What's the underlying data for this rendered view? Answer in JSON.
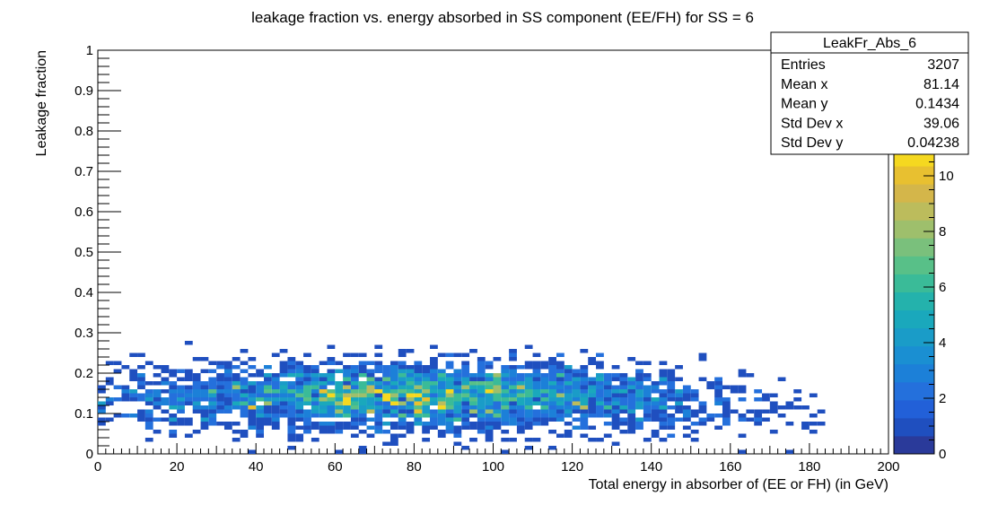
{
  "chart_data": {
    "type": "heatmap",
    "title": "leakage fraction vs. energy absorbed in SS component (EE/FH) for SS = 6",
    "xlabel": "Total energy in absorber of (EE or FH) (in GeV)",
    "ylabel": "Leakage fraction",
    "xlim": [
      0,
      200
    ],
    "ylim": [
      0,
      1
    ],
    "x_ticks": [
      "0",
      "20",
      "40",
      "60",
      "80",
      "100",
      "120",
      "140",
      "160",
      "180",
      "200"
    ],
    "y_ticks": [
      "0",
      "0.1",
      "0.2",
      "0.3",
      "0.4",
      "0.5",
      "0.6",
      "0.7",
      "0.8",
      "0.9",
      "1"
    ],
    "bins": {
      "x_bins": 100,
      "x_range": [
        0,
        200
      ],
      "y_bins": 100,
      "y_range": [
        0,
        1
      ]
    },
    "colorbar": {
      "range": [
        0,
        11
      ],
      "ticks": [
        "0",
        "2",
        "4",
        "6",
        "8",
        "10"
      ],
      "palette": [
        "#2a3a9a",
        "#1f4fbf",
        "#2260d8",
        "#2470dc",
        "#1c80d8",
        "#1a8fd2",
        "#1a9cc8",
        "#1aa8bc",
        "#24b2ac",
        "#3abb98",
        "#58c088",
        "#7ac07c",
        "#9ebf6c",
        "#bcbc5c",
        "#d4b64a",
        "#e8c030",
        "#f5d820"
      ]
    },
    "stats_box": {
      "name": "LeakFr_Abs_6",
      "rows": [
        {
          "label": "Entries",
          "value": "3207"
        },
        {
          "label": "Mean x",
          "value": "81.14"
        },
        {
          "label": "Mean y",
          "value": "0.1434"
        },
        {
          "label": "Std Dev x",
          "value": "39.06"
        },
        {
          "label": "Std Dev y",
          "value": "0.04238"
        }
      ]
    },
    "distribution": {
      "entries": 3207,
      "mean_x": 81.14,
      "mean_y": 0.1434,
      "std_x": 39.06,
      "std_y": 0.04238
    }
  }
}
